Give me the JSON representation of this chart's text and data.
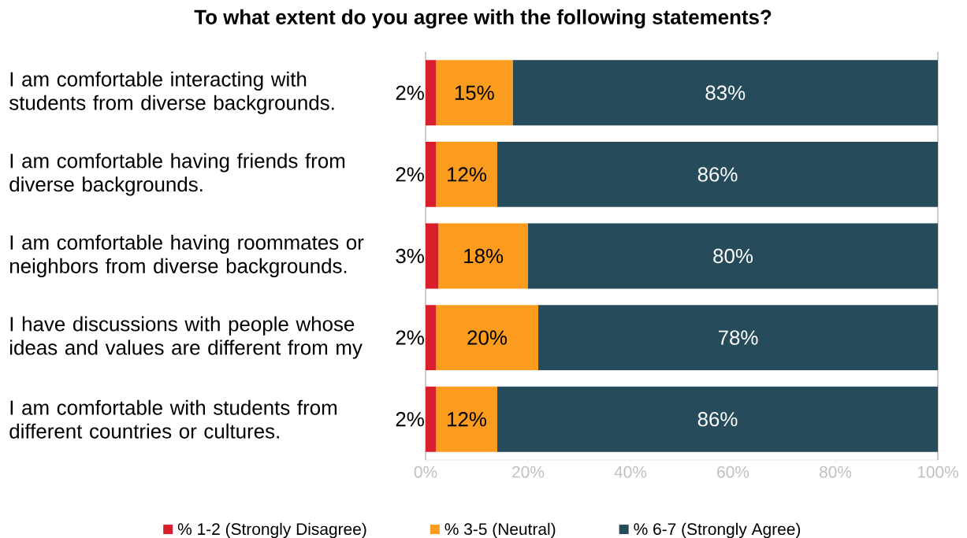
{
  "chart_data": {
    "type": "bar",
    "orientation": "horizontal",
    "stacked": true,
    "title": "To what extent do you agree with the following statements?",
    "categories": [
      "I am comfortable interacting with students from diverse backgrounds.",
      "I am comfortable having friends from diverse backgrounds.",
      "I am comfortable having roommates or neighbors from diverse backgrounds.",
      "I have discussions with people whose ideas and values are different from my",
      "I am comfortable with students from different countries or cultures."
    ],
    "series": [
      {
        "name": "% 1-2 (Strongly Disagree)",
        "color": "#da1f2c",
        "values": [
          2,
          2,
          2.5,
          2,
          2
        ],
        "value_labels": [
          "2%",
          "2%",
          "3%",
          "2%",
          "2%"
        ]
      },
      {
        "name": "% 3-5 (Neutral)",
        "color": "#fb9c1f",
        "values": [
          15,
          12,
          17.5,
          20,
          12
        ],
        "value_labels": [
          "15%",
          "12%",
          "18%",
          "20%",
          "12%"
        ]
      },
      {
        "name": "% 6-7 (Strongly Agree)",
        "color": "#264c5b",
        "values": [
          83,
          86,
          80,
          78,
          86
        ],
        "value_labels": [
          "83%",
          "86%",
          "80%",
          "78%",
          "86%"
        ]
      }
    ],
    "xlim": [
      0,
      100
    ],
    "xticks": [
      {
        "value": 0,
        "label": "0%"
      },
      {
        "value": 20,
        "label": "20%"
      },
      {
        "value": 40,
        "label": "40%"
      },
      {
        "value": 60,
        "label": "60%"
      },
      {
        "value": 80,
        "label": "80%"
      },
      {
        "value": 100,
        "label": "100%"
      }
    ],
    "legend": "bottom"
  }
}
